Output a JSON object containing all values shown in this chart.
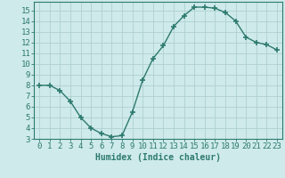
{
  "x": [
    0,
    1,
    2,
    3,
    4,
    5,
    6,
    7,
    8,
    9,
    10,
    11,
    12,
    13,
    14,
    15,
    16,
    17,
    18,
    19,
    20,
    21,
    22,
    23
  ],
  "y": [
    8,
    8,
    7.5,
    6.5,
    5,
    4,
    3.5,
    3.2,
    3.3,
    5.5,
    8.5,
    10.5,
    11.7,
    13.5,
    14.5,
    15.3,
    15.3,
    15.2,
    14.8,
    14,
    12.5,
    12,
    11.8,
    11.3
  ],
  "line_color": "#2d7a6e",
  "marker": "+",
  "marker_size": 4,
  "marker_lw": 1.2,
  "bg_color": "#ceeaea",
  "grid_color": "#b0d0d0",
  "tick_color": "#2d7a6e",
  "xlabel": "Humidex (Indice chaleur)",
  "xlabel_fontsize": 7,
  "xlim": [
    -0.5,
    23.5
  ],
  "ylim": [
    3,
    15.8
  ],
  "yticks": [
    3,
    4,
    5,
    6,
    7,
    8,
    9,
    10,
    11,
    12,
    13,
    14,
    15
  ],
  "xticks": [
    0,
    1,
    2,
    3,
    4,
    5,
    6,
    7,
    8,
    9,
    10,
    11,
    12,
    13,
    14,
    15,
    16,
    17,
    18,
    19,
    20,
    21,
    22,
    23
  ],
  "axis_color": "#2d7a6e",
  "tick_fontsize": 6.5,
  "line_width": 1.0
}
